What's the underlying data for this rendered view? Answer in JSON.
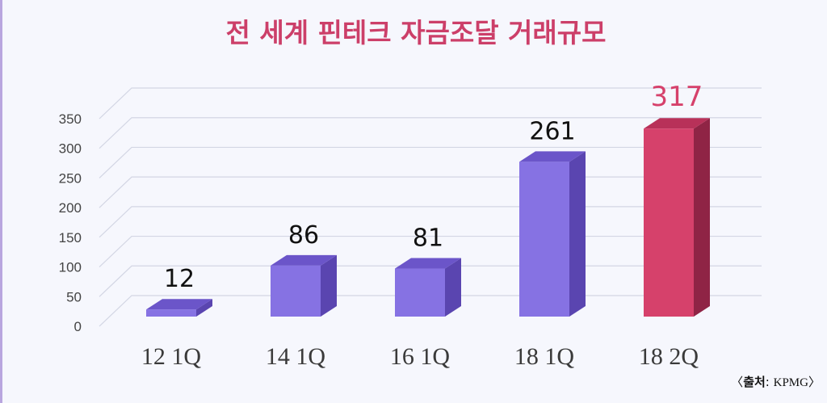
{
  "chart_data": {
    "type": "bar",
    "title": "전 세계 핀테크 자금조달 거래규모",
    "categories": [
      "12  1Q",
      "14  1Q",
      "16  1Q",
      "18  1Q",
      "18  2Q"
    ],
    "values": [
      12,
      86,
      81,
      261,
      317
    ],
    "value_labels": [
      "12",
      "86",
      "81",
      "261",
      "317"
    ],
    "yticks": [
      "0",
      "50",
      "100",
      "150",
      "200",
      "250",
      "300",
      "350"
    ],
    "ylim": [
      0,
      350
    ],
    "grid": true,
    "highlight_index": 4,
    "colors": {
      "bar_front": "#8672e3",
      "bar_top": "#6b55c9",
      "bar_side": "#5a45b0",
      "highlight_front": "#d6416b",
      "highlight_top": "#b83159",
      "highlight_side": "#8f2445",
      "title": "#cc3f69",
      "value_label": "#111111",
      "highlight_label": "#d6416b",
      "tick": "#444444",
      "grid": "#d3d6e4"
    }
  },
  "source": {
    "prefix": "〈",
    "label": "출처",
    "separator": ": ",
    "name": "KPMG",
    "suffix": "〉"
  }
}
